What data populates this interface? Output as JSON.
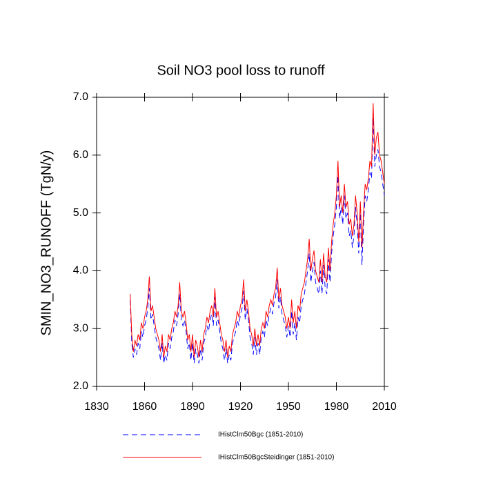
{
  "chart_data": {
    "type": "line",
    "title": "Soil NO3 pool loss to runoff",
    "ylabel": "SMIN_NO3_RUNOFF  (TgN/y)",
    "xlim": [
      1830,
      2010
    ],
    "xticks": [
      1830,
      1860,
      1890,
      1920,
      1950,
      1980,
      2010
    ],
    "ylim": [
      2,
      7
    ],
    "yticks": [
      {
        "value": 2,
        "label": "2.0"
      },
      {
        "value": 3,
        "label": "3.0"
      },
      {
        "value": 4,
        "label": "4.0"
      },
      {
        "value": 5,
        "label": "5.0"
      },
      {
        "value": 6,
        "label": "6.0"
      },
      {
        "value": 7,
        "label": "7.0"
      }
    ],
    "legend": "bottom",
    "x": [
      1851,
      1852,
      1853,
      1854,
      1855,
      1856,
      1857,
      1858,
      1859,
      1860,
      1861,
      1862,
      1863,
      1864,
      1865,
      1866,
      1867,
      1868,
      1869,
      1870,
      1871,
      1872,
      1873,
      1874,
      1875,
      1876,
      1877,
      1878,
      1879,
      1880,
      1881,
      1882,
      1883,
      1884,
      1885,
      1886,
      1887,
      1888,
      1889,
      1890,
      1891,
      1892,
      1893,
      1894,
      1895,
      1896,
      1897,
      1898,
      1899,
      1900,
      1901,
      1902,
      1903,
      1904,
      1905,
      1906,
      1907,
      1908,
      1909,
      1910,
      1911,
      1912,
      1913,
      1914,
      1915,
      1916,
      1917,
      1918,
      1919,
      1920,
      1921,
      1922,
      1923,
      1924,
      1925,
      1926,
      1927,
      1928,
      1929,
      1930,
      1931,
      1932,
      1933,
      1934,
      1935,
      1936,
      1937,
      1938,
      1939,
      1940,
      1941,
      1942,
      1943,
      1944,
      1945,
      1946,
      1947,
      1948,
      1949,
      1950,
      1951,
      1952,
      1953,
      1954,
      1955,
      1956,
      1957,
      1958,
      1959,
      1960,
      1961,
      1962,
      1963,
      1964,
      1965,
      1966,
      1967,
      1968,
      1969,
      1970,
      1971,
      1972,
      1973,
      1974,
      1975,
      1976,
      1977,
      1978,
      1979,
      1980,
      1981,
      1982,
      1983,
      1984,
      1985,
      1986,
      1987,
      1988,
      1989,
      1990,
      1991,
      1992,
      1993,
      1994,
      1995,
      1996,
      1997,
      1998,
      1999,
      2000,
      2001,
      2002,
      2003,
      2004,
      2005,
      2006,
      2007,
      2008,
      2009,
      2010
    ],
    "series": [
      {
        "name": "IHistClm50Bgc (1851-2010)",
        "color": "#0000ff",
        "dash": true,
        "values": [
          3.5,
          2.75,
          2.5,
          2.65,
          2.55,
          2.75,
          2.65,
          2.95,
          2.85,
          3.05,
          3.15,
          3.35,
          3.7,
          3.15,
          3.25,
          3.05,
          2.85,
          2.75,
          2.65,
          2.45,
          2.75,
          2.4,
          2.55,
          2.45,
          2.75,
          2.65,
          2.85,
          2.95,
          3.15,
          3.05,
          3.25,
          3.6,
          3.15,
          3.05,
          3.15,
          2.95,
          2.65,
          2.75,
          2.45,
          2.75,
          2.4,
          2.65,
          2.55,
          2.4,
          2.65,
          2.45,
          2.75,
          2.85,
          3.05,
          2.95,
          3.15,
          3.25,
          3.05,
          3.55,
          3.05,
          3.15,
          2.95,
          2.75,
          2.65,
          2.45,
          2.65,
          2.4,
          2.55,
          2.45,
          2.75,
          2.85,
          2.95,
          3.15,
          3.05,
          3.25,
          3.35,
          3.65,
          3.15,
          3.35,
          3.15,
          2.85,
          2.75,
          2.55,
          2.85,
          2.55,
          2.75,
          2.55,
          2.85,
          2.95,
          2.85,
          3.15,
          3.05,
          3.25,
          3.35,
          3.25,
          3.45,
          3.55,
          3.85,
          3.35,
          3.55,
          3.25,
          3.15,
          3.05,
          2.85,
          3.05,
          2.85,
          3.3,
          2.9,
          3.1,
          2.8,
          3.2,
          3.1,
          3.4,
          3.5,
          3.6,
          3.8,
          4.0,
          4.3,
          3.8,
          4.0,
          4.15,
          3.8,
          3.7,
          3.6,
          4.0,
          3.6,
          4.1,
          3.7,
          3.6,
          4.2,
          3.8,
          4.3,
          4.6,
          4.8,
          5.1,
          5.65,
          4.9,
          5.1,
          4.8,
          5.3,
          4.9,
          5.0,
          4.6,
          4.7,
          4.4,
          4.6,
          5.1,
          4.8,
          4.3,
          5.0,
          4.1,
          4.8,
          5.3,
          5.2,
          5.4,
          5.7,
          5.6,
          6.65,
          5.8,
          6.0,
          6.1,
          5.8,
          5.7,
          5.5,
          5.3
        ]
      },
      {
        "name": "IHistClm50BgcSteidinger (1851-2010)",
        "color": "#ff0000",
        "values": [
          3.6,
          2.9,
          2.6,
          2.8,
          2.7,
          2.9,
          2.8,
          3.1,
          3.0,
          3.2,
          3.3,
          3.5,
          3.9,
          3.3,
          3.4,
          3.2,
          3.0,
          2.9,
          2.8,
          2.6,
          2.9,
          2.5,
          2.7,
          2.6,
          2.9,
          2.8,
          3.0,
          3.1,
          3.3,
          3.2,
          3.4,
          3.8,
          3.3,
          3.2,
          3.3,
          3.1,
          2.8,
          2.9,
          2.6,
          2.9,
          2.5,
          2.8,
          2.7,
          2.5,
          2.8,
          2.6,
          2.9,
          3.0,
          3.2,
          3.1,
          3.3,
          3.4,
          3.2,
          3.7,
          3.2,
          3.3,
          3.1,
          2.9,
          2.8,
          2.6,
          2.8,
          2.5,
          2.7,
          2.6,
          2.9,
          3.0,
          3.1,
          3.3,
          3.2,
          3.4,
          3.5,
          3.85,
          3.3,
          3.5,
          3.3,
          3.0,
          2.9,
          2.7,
          3.0,
          2.7,
          2.9,
          2.7,
          3.0,
          3.1,
          3.0,
          3.3,
          3.2,
          3.4,
          3.5,
          3.4,
          3.6,
          3.7,
          4.05,
          3.5,
          3.7,
          3.4,
          3.3,
          3.2,
          3.0,
          3.2,
          3.0,
          3.5,
          3.1,
          3.3,
          3.0,
          3.4,
          3.3,
          3.6,
          3.7,
          3.8,
          4.0,
          4.2,
          4.55,
          4.0,
          4.2,
          4.35,
          4.0,
          3.9,
          3.8,
          4.2,
          3.8,
          4.3,
          3.9,
          3.8,
          4.4,
          4.0,
          4.5,
          4.8,
          5.0,
          5.3,
          5.9,
          5.1,
          5.3,
          5.0,
          5.5,
          5.1,
          5.2,
          4.8,
          4.9,
          4.6,
          4.8,
          5.3,
          5.0,
          4.5,
          5.2,
          4.4,
          5.0,
          5.5,
          5.4,
          5.6,
          5.9,
          5.8,
          6.9,
          6.0,
          6.3,
          6.4,
          6.0,
          5.9,
          5.7,
          5.5
        ]
      }
    ]
  }
}
